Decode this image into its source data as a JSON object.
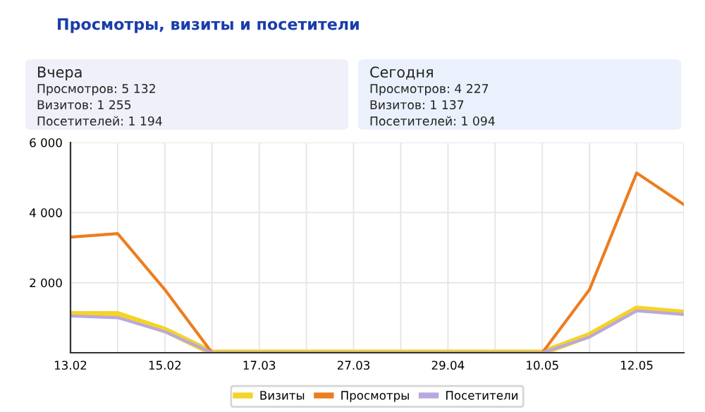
{
  "chart_data": {
    "type": "line",
    "title": "Просмотры, визиты и посетители",
    "annotations": [
      "Вчера",
      "Просмотров: 5 132",
      "Визитов: 1 255",
      "Посетителей: 1 194",
      "Сегодня",
      "Просмотров: 4 227",
      "Визитов: 1 137",
      "Посетителей: 1 094"
    ],
    "categories": [
      "13.02",
      null,
      "15.02",
      null,
      "17.03",
      null,
      "27.03",
      null,
      "29.04",
      null,
      "10.05",
      null,
      "12.05",
      null
    ],
    "series": [
      {
        "name": "Визиты",
        "color": "#f5d327",
        "values": [
          1100,
          1100,
          650,
          0,
          0,
          0,
          0,
          0,
          0,
          0,
          0,
          500,
          1255,
          1137
        ]
      },
      {
        "name": "Просмотры",
        "color": "#ed7d1f",
        "values": [
          3300,
          3400,
          1800,
          0,
          0,
          0,
          0,
          0,
          0,
          0,
          0,
          1800,
          5132,
          4227
        ]
      },
      {
        "name": "Посетители",
        "color": "#b9a8e0",
        "values": [
          1050,
          1000,
          600,
          0,
          0,
          0,
          0,
          0,
          0,
          0,
          0,
          450,
          1194,
          1094
        ]
      }
    ],
    "ylim": [
      0,
      6000
    ],
    "yticks": [
      {
        "value": 2000,
        "label": "2 000"
      },
      {
        "value": 4000,
        "label": "4 000"
      },
      {
        "value": 6000,
        "label": "6 000"
      }
    ],
    "grid": true,
    "legend": "bottom",
    "marker": "none",
    "line_style": "solid"
  }
}
